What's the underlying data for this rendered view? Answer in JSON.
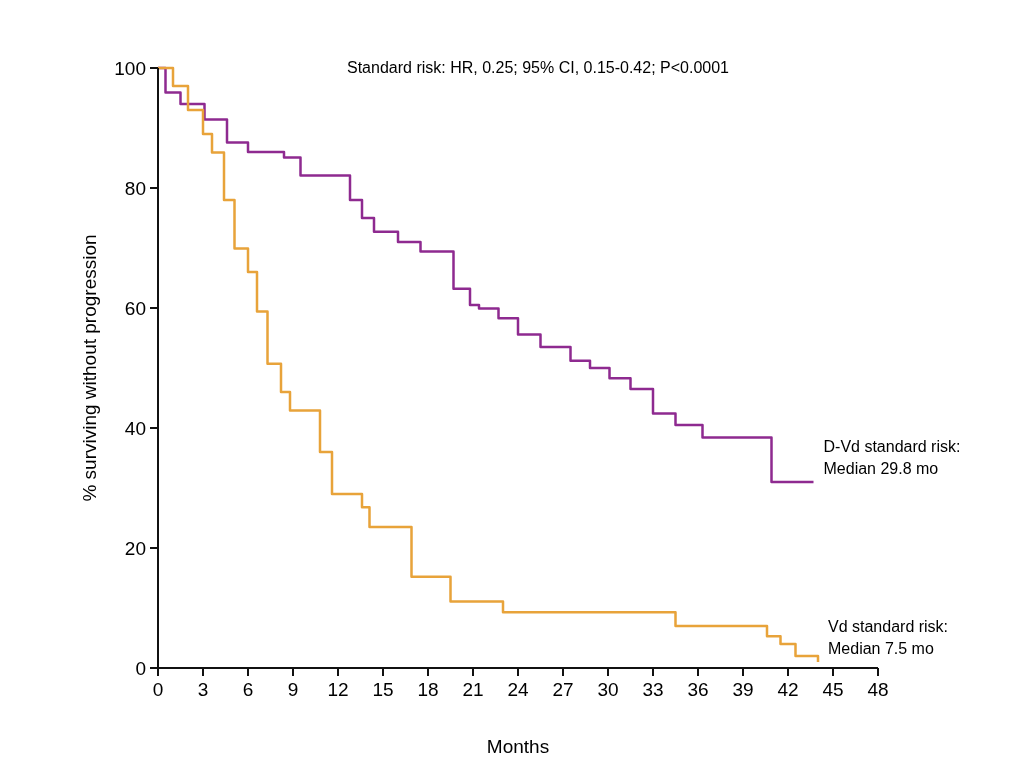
{
  "chart_data": {
    "type": "step",
    "xlabel": "Months",
    "ylabel": "% surviving without progression",
    "xlim": [
      0,
      48
    ],
    "ylim": [
      0,
      100
    ],
    "xticks": [
      0,
      3,
      6,
      9,
      12,
      15,
      18,
      21,
      24,
      27,
      30,
      33,
      36,
      39,
      42,
      45,
      48
    ],
    "yticks": [
      0,
      20,
      40,
      60,
      80,
      100
    ],
    "grid": false,
    "marker": "none",
    "line_style": "solid",
    "annotations": [
      "Standard risk: HR, 0.25; 95% CI, 0.15-0.42; P<0.0001"
    ],
    "series": [
      {
        "name": "D-Vd standard risk: Median 29.8 mo",
        "color": "#8e2a90",
        "x": [
          0,
          0.5,
          1.5,
          3.1,
          4.6,
          6,
          8.4,
          9.5,
          11.8,
          12.8,
          13.6,
          14.4,
          16,
          17.5,
          19.7,
          20.8,
          21.4,
          22.7,
          24,
          25.5,
          27.5,
          28.8,
          30.1,
          31.5,
          33,
          34.5,
          36.3,
          40.9,
          43.7
        ],
        "values": [
          100,
          95.9,
          94,
          91.4,
          87.6,
          86,
          85.1,
          82.1,
          82.1,
          78,
          75,
          72.7,
          71,
          69.4,
          63.2,
          60.5,
          59.9,
          58.3,
          55.6,
          53.5,
          51.2,
          50,
          48.3,
          46.5,
          42.4,
          40.5,
          38.4,
          31,
          31
        ]
      },
      {
        "name": "Vd standard risk: Median 7.5 mo",
        "color": "#e8a33a",
        "x": [
          0,
          1,
          2,
          3,
          3.6,
          4.4,
          5.1,
          6,
          6.6,
          7.3,
          8.2,
          8.8,
          10.1,
          10.8,
          11.6,
          13.6,
          14.1,
          16,
          16.9,
          19.3,
          19.5,
          22.5,
          23,
          34.5,
          40.6,
          41.5,
          42.5,
          44
        ],
        "values": [
          100,
          97,
          93,
          89,
          85.9,
          78,
          69.9,
          66,
          59.4,
          50.7,
          46,
          42.9,
          42.9,
          36,
          29,
          26.8,
          23.5,
          23.5,
          15.2,
          15.2,
          11.1,
          11.1,
          9.3,
          7,
          5.3,
          4,
          2,
          1
        ]
      }
    ]
  }
}
